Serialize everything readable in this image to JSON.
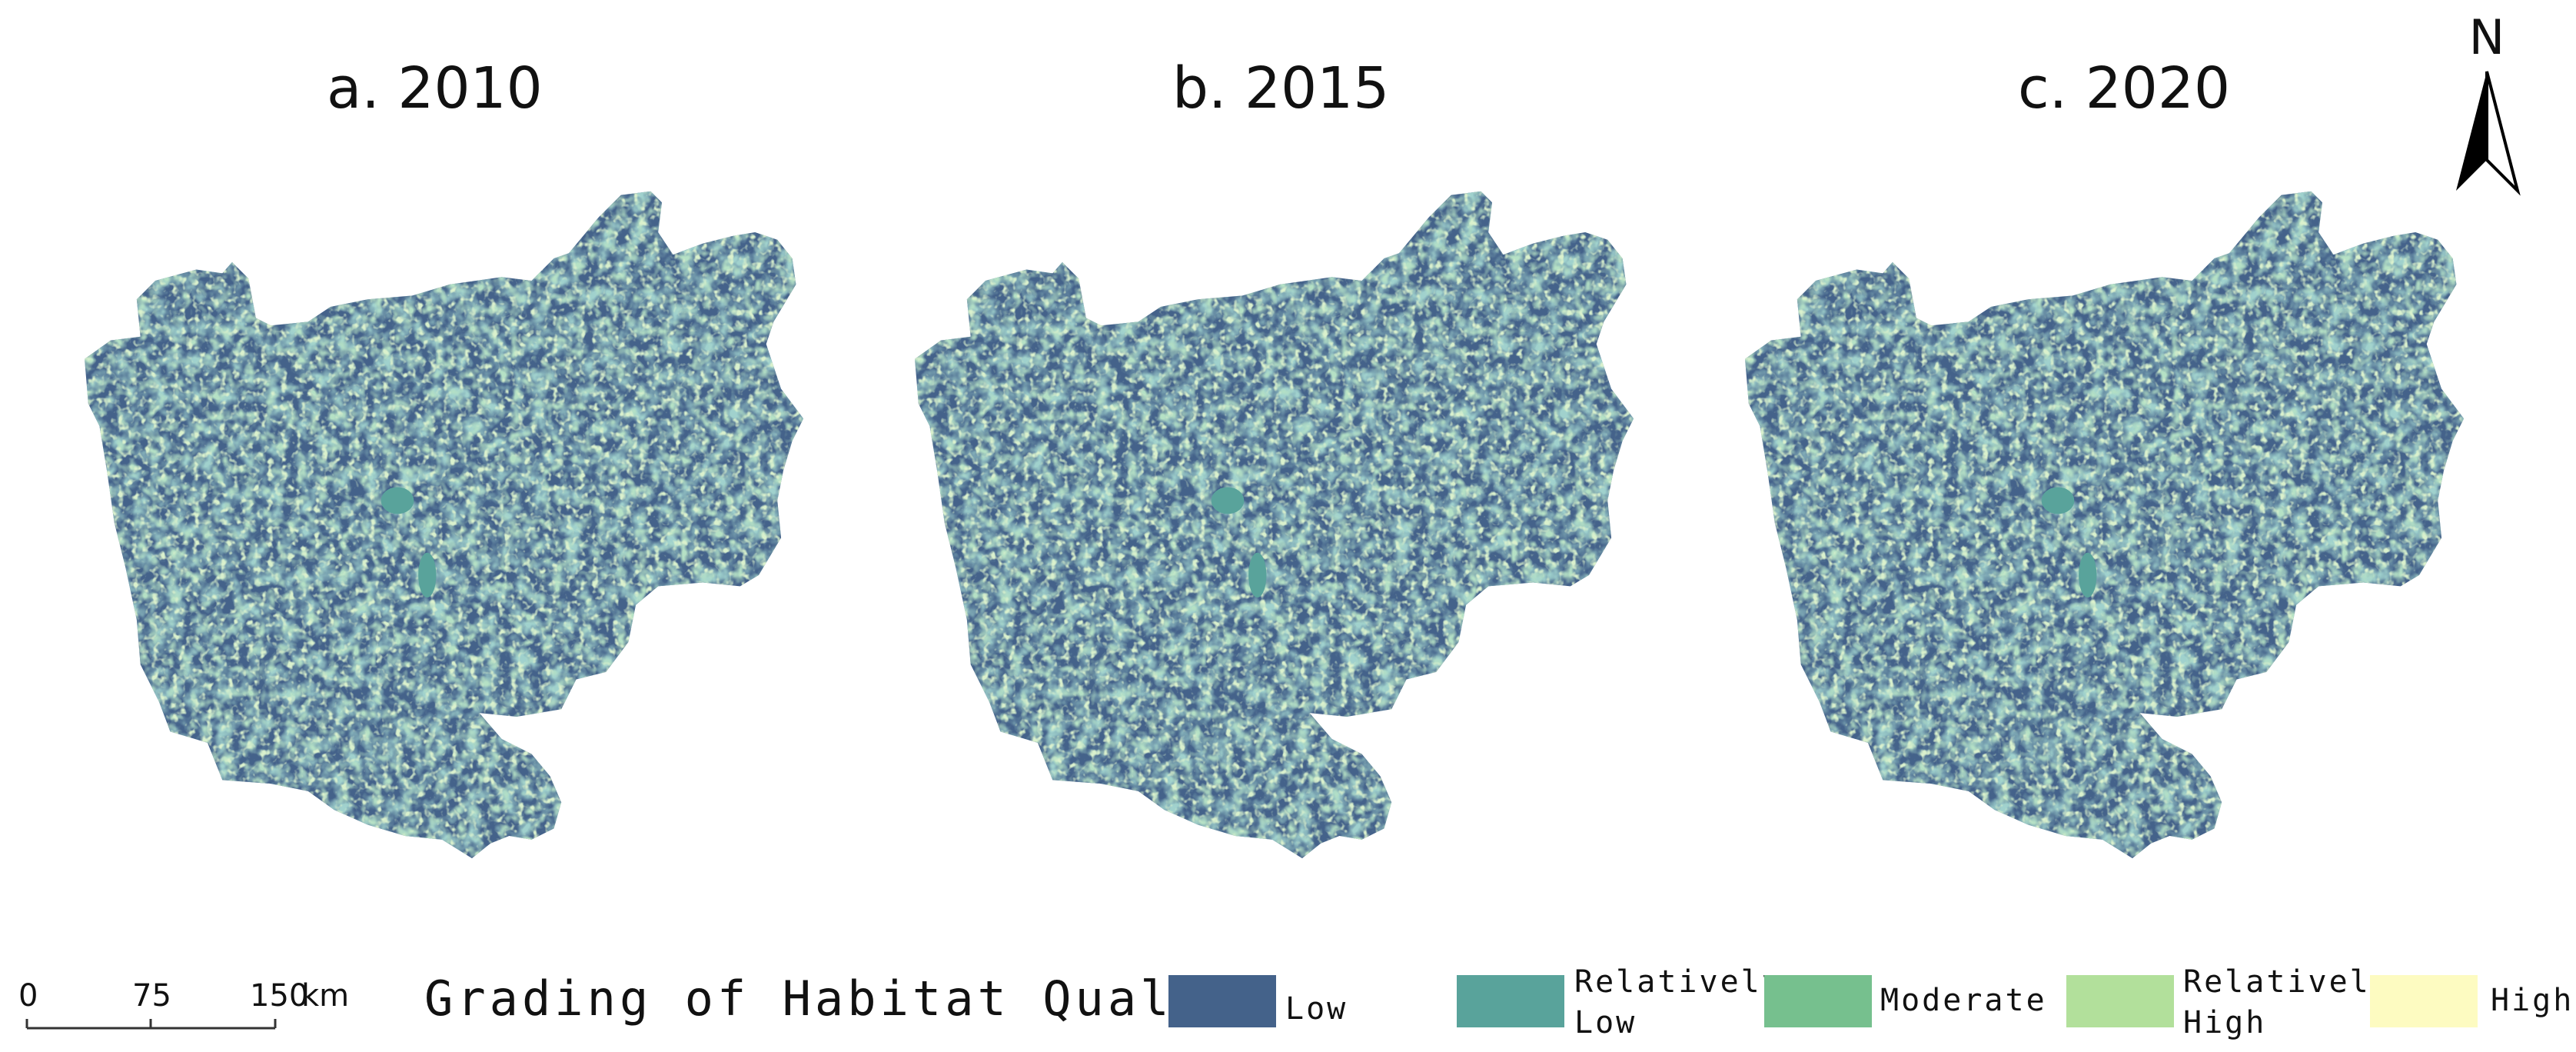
{
  "panels": [
    {
      "title": "a. 2010"
    },
    {
      "title": "b. 2015"
    },
    {
      "title": "c. 2020"
    }
  ],
  "north_arrow": {
    "label": "N"
  },
  "scale_bar": {
    "ticks": [
      "0",
      "75",
      "150"
    ],
    "unit": "km"
  },
  "legend": {
    "title": "Grading of Habitat Quality",
    "classes": [
      {
        "label_line1": "Low",
        "label_line2": "",
        "color": "#44628A"
      },
      {
        "label_line1": "Relatively",
        "label_line2": "Low",
        "color": "#59A39B"
      },
      {
        "label_line1": "Moderate",
        "label_line2": "",
        "color": "#76C08E"
      },
      {
        "label_line1": "Relatively",
        "label_line2": "High",
        "color": "#B2E09B"
      },
      {
        "label_line1": "High",
        "label_line2": "",
        "color": "#FDFBC1"
      }
    ]
  }
}
